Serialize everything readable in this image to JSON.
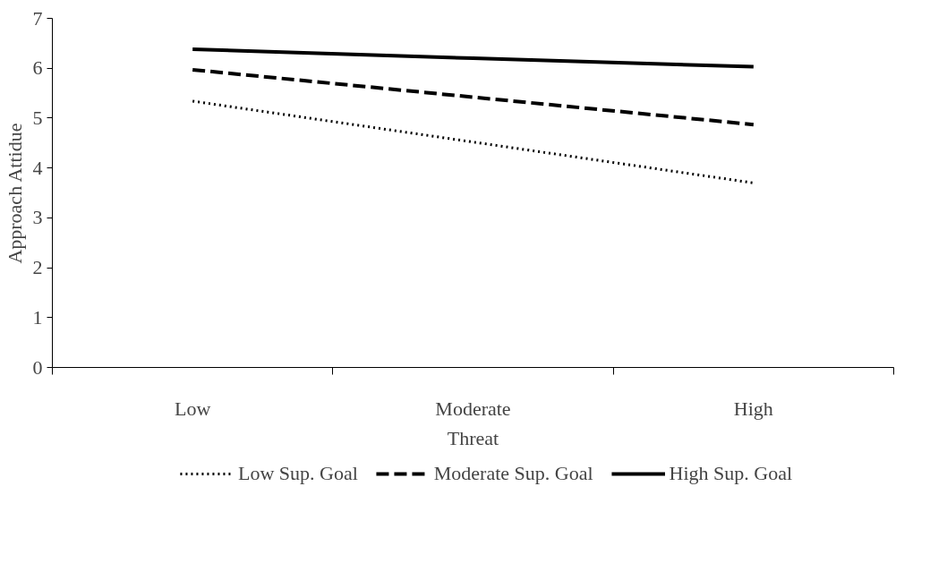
{
  "chart_data": {
    "type": "line",
    "xlabel": "Threat",
    "ylabel": "Approach Attidue",
    "categories": [
      "Low",
      "Moderate",
      "High"
    ],
    "series": [
      {
        "name": "Low Sup. Goal",
        "color": "#000000",
        "line_style": "dotted",
        "values": [
          5.34,
          4.52,
          3.7
        ]
      },
      {
        "name": "Moderate Sup. Goal",
        "color": "#000000",
        "line_style": "dashed",
        "values": [
          5.97,
          5.42,
          4.87
        ]
      },
      {
        "name": "High Sup. Goal",
        "color": "#000000",
        "line_style": "solid",
        "values": [
          6.38,
          6.2,
          6.03
        ]
      }
    ],
    "ylim": [
      0,
      7
    ],
    "yticks": [
      0,
      1,
      2,
      3,
      4,
      5,
      6,
      7
    ],
    "grid": false,
    "legend": "bottom",
    "marker": "none"
  }
}
